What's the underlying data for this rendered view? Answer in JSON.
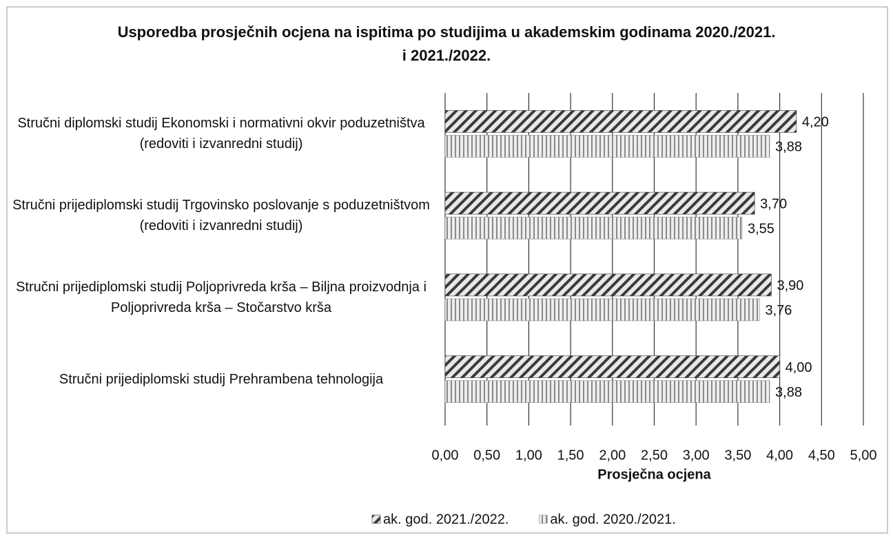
{
  "chart_data": {
    "type": "hbar",
    "title": "Usporedba prosječnih ocjena na ispitima po studijima u akademskim godinama 2020./2021. i 2021./2022.",
    "categories": [
      "Stručni diplomski studij Ekonomski i normativni okvir poduzetništva  (redoviti i izvanredni studij)",
      "Stručni prijediplomski studij Trgovinsko poslovanje s poduzetništvom (redoviti i izvanredni studij)",
      "Stručni prijediplomski studij Poljoprivreda krša – Biljna proizvodnja i Poljoprivreda krša – Stočarstvo krša",
      "Stručni prijediplomski studij Prehrambena tehnologija"
    ],
    "series": [
      {
        "name": "ak. god. 2021./2022.",
        "color": "#3a3a3a",
        "values": [
          4.2,
          3.7,
          3.9,
          4.0
        ],
        "value_labels": [
          "4,20",
          "3,70",
          "3,90",
          "4,00"
        ]
      },
      {
        "name": "ak. god. 2020./2021.",
        "color": "#8a8a8a",
        "values": [
          3.88,
          3.55,
          3.76,
          3.88
        ],
        "value_labels": [
          "3,88",
          "3,55",
          "3,76",
          "3,88"
        ]
      }
    ],
    "x_label": "Prosječna ocjena",
    "xlim": [
      0,
      5
    ],
    "xticks": [
      {
        "value": 0,
        "label": "0,00"
      },
      {
        "value": 0.5,
        "label": "0,50"
      },
      {
        "value": 1,
        "label": "1,00"
      },
      {
        "value": 1.5,
        "label": "1,50"
      },
      {
        "value": 2,
        "label": "2,00"
      },
      {
        "value": 2.5,
        "label": "2,50"
      },
      {
        "value": 3,
        "label": "3,00"
      },
      {
        "value": 3.5,
        "label": "3,50"
      },
      {
        "value": 4,
        "label": "4,00"
      },
      {
        "value": 4.5,
        "label": "4,50"
      },
      {
        "value": 5,
        "label": "5,00"
      }
    ],
    "grid": true,
    "legend": "bottom"
  }
}
